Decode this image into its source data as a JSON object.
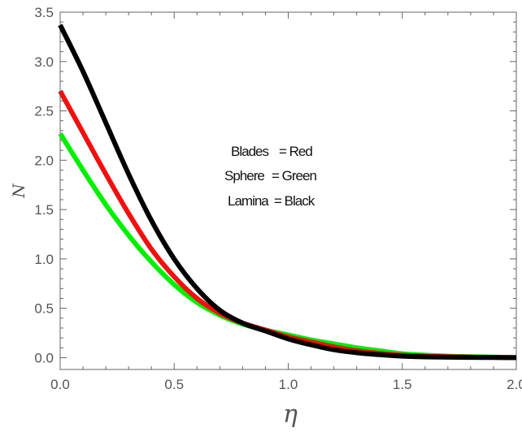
{
  "chart_data": {
    "type": "line",
    "xlabel": "η",
    "ylabel": "N",
    "xlim": [
      0,
      2
    ],
    "ylim": [
      -0.12,
      3.5
    ],
    "x_ticks": [
      "0.0",
      "0.5",
      "1.0",
      "1.5",
      "2.0"
    ],
    "x_tick_values": [
      0,
      0.5,
      1.0,
      1.5,
      2.0
    ],
    "y_ticks": [
      "0.0",
      "0.5",
      "1.0",
      "1.5",
      "2.0",
      "2.5",
      "3.0",
      "3.5"
    ],
    "y_tick_values": [
      0,
      0.5,
      1.0,
      1.5,
      2.0,
      2.5,
      3.0,
      3.5
    ],
    "grid": false,
    "legend_lines": [
      {
        "key": "Blades",
        "value": "= Red"
      },
      {
        "key": "Sphere",
        "value": "= Green"
      },
      {
        "key": "Lamina",
        "value": "= Black"
      }
    ],
    "series": [
      {
        "color": "#00ee00",
        "x": [
          0,
          0.1,
          0.2,
          0.3,
          0.4,
          0.5,
          0.6,
          0.7,
          0.8,
          0.9,
          1.0,
          1.1,
          1.2,
          1.3,
          1.4,
          1.5,
          1.6,
          1.7,
          1.8,
          1.9,
          2.0
        ],
        "y": [
          2.27,
          1.9,
          1.55,
          1.24,
          0.97,
          0.74,
          0.56,
          0.43,
          0.34,
          0.28,
          0.23,
          0.18,
          0.14,
          0.1,
          0.07,
          0.04,
          0.025,
          0.015,
          0.01,
          0.005,
          0.0
        ]
      },
      {
        "color": "#ee1111",
        "x": [
          0,
          0.1,
          0.2,
          0.3,
          0.4,
          0.5,
          0.6,
          0.7,
          0.8,
          0.9,
          1.0,
          1.1,
          1.2,
          1.3,
          1.4,
          1.5,
          1.6,
          1.7,
          1.8,
          1.9,
          2.0
        ],
        "y": [
          2.7,
          2.28,
          1.86,
          1.46,
          1.1,
          0.82,
          0.6,
          0.45,
          0.35,
          0.28,
          0.21,
          0.16,
          0.11,
          0.07,
          0.045,
          0.025,
          0.015,
          0.01,
          0.005,
          0.003,
          0.0
        ]
      },
      {
        "color": "#000000",
        "x": [
          0,
          0.1,
          0.2,
          0.3,
          0.4,
          0.5,
          0.6,
          0.7,
          0.8,
          0.9,
          1.0,
          1.1,
          1.2,
          1.3,
          1.4,
          1.5,
          1.6,
          1.7,
          1.8,
          1.9,
          2.0
        ],
        "y": [
          3.37,
          2.9,
          2.38,
          1.86,
          1.39,
          1.0,
          0.7,
          0.48,
          0.35,
          0.27,
          0.19,
          0.13,
          0.08,
          0.05,
          0.03,
          0.015,
          0.008,
          0.004,
          0.002,
          0.001,
          0.0
        ]
      }
    ]
  }
}
